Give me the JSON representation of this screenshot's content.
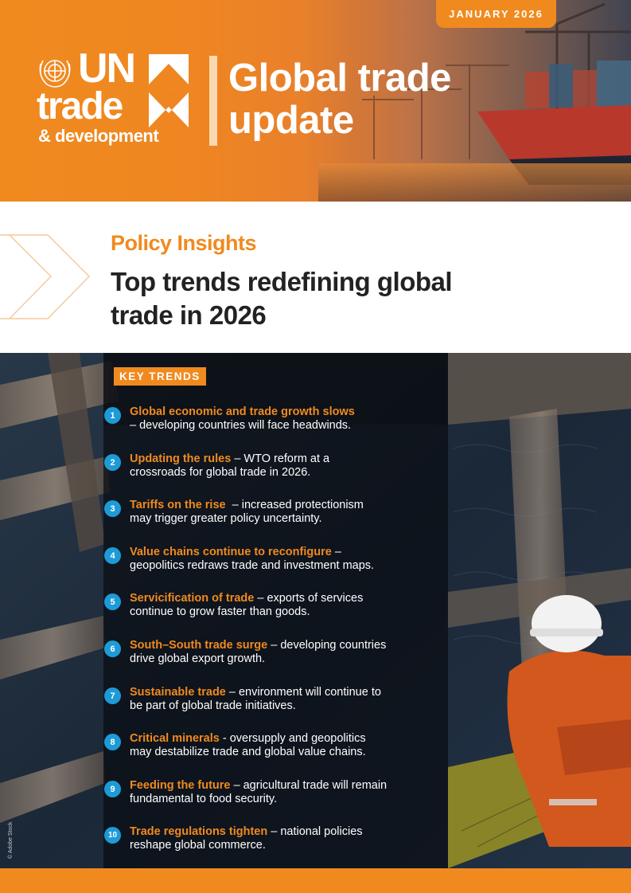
{
  "header": {
    "date": "JANUARY 2026",
    "logo": {
      "un": "UN",
      "trade": "trade",
      "development": "& development",
      "unctad": "UNCTAD"
    },
    "title_line1": "Global trade",
    "title_line2": "update"
  },
  "insights": {
    "kicker": "Policy Insights",
    "title_line1": "Top trends redefining global",
    "title_line2": "trade in 2026"
  },
  "key_trends": {
    "badge": "KEY TRENDS",
    "items": [
      {
        "number": "1",
        "highlight": "Global economic and trade growth slows",
        "line1_rest": "",
        "line2": "– developing countries will face headwinds."
      },
      {
        "number": "2",
        "highlight": "Updating the rules",
        "line1_rest": " – WTO reform at a",
        "line2": "crossroads for global trade in 2026."
      },
      {
        "number": "3",
        "highlight": "Tariffs on the rise",
        "line1_rest": "  – increased protectionism",
        "line2": "may trigger greater policy uncertainty."
      },
      {
        "number": "4",
        "highlight": "Value chains continue to reconfigure",
        "line1_rest": " –",
        "line2": "geopolitics redraws trade and investment maps."
      },
      {
        "number": "5",
        "highlight": "Servicification of trade",
        "line1_rest": " – exports of services",
        "line2": "continue to grow faster than goods."
      },
      {
        "number": "6",
        "highlight": "South–South trade surge",
        "line1_rest": " – developing countries",
        "line2": "drive global export growth."
      },
      {
        "number": "7",
        "highlight": "Sustainable trade",
        "line1_rest": " – environment will continue to",
        "line2": "be part of global trade initiatives."
      },
      {
        "number": "8",
        "highlight": "Critical minerals",
        "line1_rest": " - oversupply and geopolitics",
        "line2": "may destabilize trade and global value chains."
      },
      {
        "number": "9",
        "highlight": "Feeding the future",
        "line1_rest": " – agricultural trade will remain",
        "line2": "fundamental to food security."
      },
      {
        "number": "10",
        "highlight": "Trade regulations tighten",
        "line1_rest": " – national policies",
        "line2": "reshape global commerce."
      }
    ]
  },
  "photo_credit": "© Adobe Stock",
  "colors": {
    "brand_orange": "#f08a1f",
    "number_blue": "#1d9bd7",
    "title_dark": "#222222"
  },
  "icons": [
    "un-emblem-icon",
    "unctad-mark-icon",
    "chevron-arrows-icon"
  ]
}
